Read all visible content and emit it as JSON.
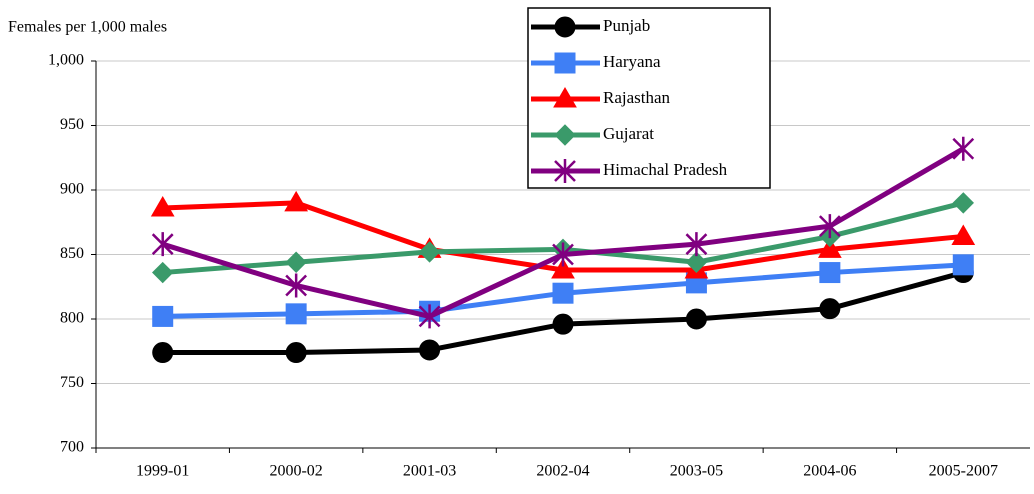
{
  "chart_data": {
    "type": "line",
    "y_axis_label": "Females per 1,000 males",
    "categories": [
      "1999-01",
      "2000-02",
      "2001-03",
      "2002-04",
      "2003-05",
      "2004-06",
      "2005-2007"
    ],
    "series": [
      {
        "name": "Punjab",
        "color": "#000000",
        "marker": "circle",
        "values": [
          774,
          774,
          776,
          796,
          800,
          808,
          836
        ]
      },
      {
        "name": "Haryana",
        "color": "#3f7ff5",
        "marker": "square",
        "values": [
          802,
          804,
          806,
          820,
          828,
          836,
          842
        ]
      },
      {
        "name": "Rajasthan",
        "color": "#ff0000",
        "marker": "triangle",
        "values": [
          886,
          890,
          854,
          838,
          838,
          854,
          864
        ]
      },
      {
        "name": "Gujarat",
        "color": "#3a9a6a",
        "marker": "diamond",
        "values": [
          836,
          844,
          852,
          854,
          844,
          864,
          890
        ]
      },
      {
        "name": "Himachal Pradesh",
        "color": "#800080",
        "marker": "star",
        "values": [
          858,
          826,
          802,
          850,
          858,
          872,
          932
        ]
      }
    ],
    "ylim": [
      700,
      1000
    ],
    "yticks": [
      700,
      750,
      800,
      850,
      900,
      950,
      {
        "value": 1000,
        "label": "1,000"
      }
    ],
    "grid": true
  }
}
